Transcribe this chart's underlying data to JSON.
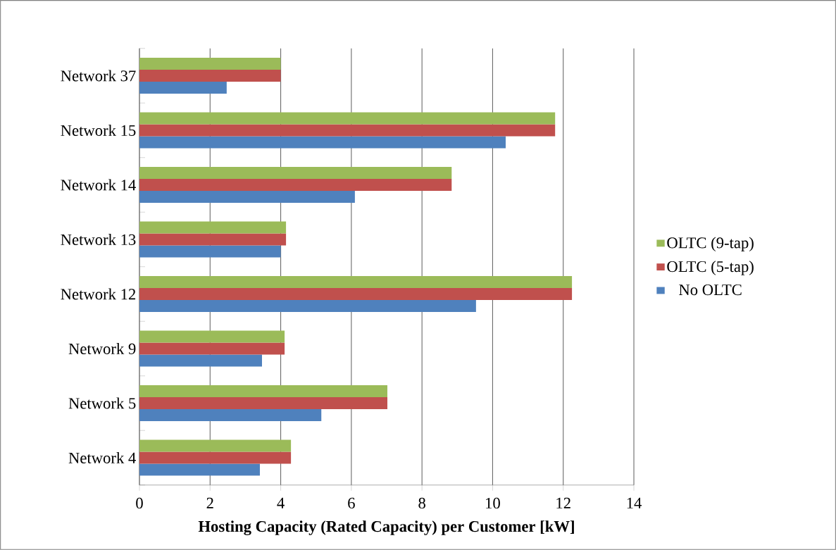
{
  "chart_data": {
    "type": "bar",
    "orientation": "horizontal",
    "categories": [
      "Network 37",
      "Network 15",
      "Network 14",
      "Network 13",
      "Network 12",
      "Network 9",
      "Network 5",
      "Network 4"
    ],
    "series": [
      {
        "name": "No OLTC",
        "color": "#4f81bd",
        "values": [
          2.47,
          10.37,
          6.1,
          4.0,
          9.53,
          3.47,
          5.15,
          3.41
        ]
      },
      {
        "name": "OLTC (5-tap)",
        "color": "#c0504d",
        "values": [
          4.0,
          11.77,
          8.84,
          4.15,
          12.25,
          4.11,
          7.02,
          4.29
        ]
      },
      {
        "name": "OLTC (9-tap)",
        "color": "#9bbb59",
        "values": [
          4.0,
          11.77,
          8.84,
          4.15,
          12.25,
          4.11,
          7.02,
          4.29
        ]
      }
    ],
    "xlim": [
      0,
      14
    ],
    "xticks": [
      0,
      2,
      4,
      6,
      8,
      10,
      12,
      14
    ],
    "xlabel": "Hosting Capacity (Rated Capacity) per Customer [kW]",
    "grid": "x",
    "legend": "right"
  }
}
